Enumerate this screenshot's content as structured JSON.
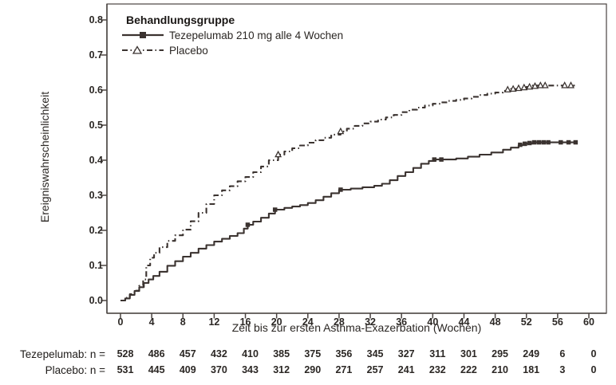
{
  "chart": {
    "y_axis_title": "Ereigniswahrscheinlichkeit",
    "x_axis_title": "Zeit bis zur ersten Asthma-Exazerbation (Wochen)",
    "legend": {
      "title": "Behandlungsgruppe",
      "items": [
        {
          "label": "Tezepelumab 210 mg alle 4 Wochen",
          "line_style": "solid",
          "marker": "filled-square"
        },
        {
          "label": "Placebo",
          "line_style": "dash-dot",
          "marker": "open-triangle"
        }
      ]
    }
  },
  "colors": {
    "line": "#3b3330",
    "frame": "#4a4441",
    "text": "#2b2724",
    "background": "#ffffff"
  },
  "chart_data": {
    "type": "line",
    "subtype": "kaplan-meier-cumulative-incidence",
    "title": "",
    "xlabel": "Zeit bis zur ersten Asthma-Exazerbation (Wochen)",
    "ylabel": "Ereigniswahrscheinlichkeit",
    "xlim": [
      0,
      60
    ],
    "ylim": [
      0.0,
      0.8
    ],
    "x_ticks": [
      0,
      4,
      8,
      12,
      16,
      20,
      24,
      28,
      32,
      36,
      40,
      44,
      48,
      52,
      56,
      60
    ],
    "y_ticks": [
      "0.0",
      "0.1",
      "0.2",
      "0.3",
      "0.4",
      "0.5",
      "0.6",
      "0.7",
      "0.8"
    ],
    "grid": false,
    "legend_position": "inside-top-left",
    "series": [
      {
        "name": "Tezepelumab 210 mg alle 4 Wochen",
        "line_style": "solid",
        "marker": "square",
        "color": "#3b3330",
        "points": [
          [
            0,
            0.0
          ],
          [
            0.6,
            0.006
          ],
          [
            1.2,
            0.016
          ],
          [
            1.8,
            0.027
          ],
          [
            2.4,
            0.038
          ],
          [
            3,
            0.05
          ],
          [
            3.6,
            0.06
          ],
          [
            4.2,
            0.07
          ],
          [
            5,
            0.082
          ],
          [
            6,
            0.099
          ],
          [
            7,
            0.112
          ],
          [
            8,
            0.125
          ],
          [
            9,
            0.136
          ],
          [
            10,
            0.148
          ],
          [
            11,
            0.158
          ],
          [
            12,
            0.168
          ],
          [
            13,
            0.176
          ],
          [
            14,
            0.184
          ],
          [
            15,
            0.192
          ],
          [
            15.8,
            0.205
          ],
          [
            16.3,
            0.216
          ],
          [
            17,
            0.225
          ],
          [
            18,
            0.236
          ],
          [
            19,
            0.248
          ],
          [
            19.8,
            0.259
          ],
          [
            21,
            0.264
          ],
          [
            22,
            0.268
          ],
          [
            23,
            0.272
          ],
          [
            24,
            0.278
          ],
          [
            25,
            0.286
          ],
          [
            26,
            0.296
          ],
          [
            27,
            0.306
          ],
          [
            28,
            0.316
          ],
          [
            29.5,
            0.319
          ],
          [
            31,
            0.323
          ],
          [
            32.5,
            0.327
          ],
          [
            33.5,
            0.333
          ],
          [
            34.5,
            0.343
          ],
          [
            35.5,
            0.355
          ],
          [
            36.5,
            0.366
          ],
          [
            37.5,
            0.378
          ],
          [
            38.5,
            0.39
          ],
          [
            39.5,
            0.398
          ],
          [
            40.3,
            0.402
          ],
          [
            43,
            0.405
          ],
          [
            44.5,
            0.41
          ],
          [
            46,
            0.416
          ],
          [
            47.5,
            0.422
          ],
          [
            49,
            0.43
          ],
          [
            50,
            0.436
          ],
          [
            51,
            0.443
          ],
          [
            52,
            0.448
          ],
          [
            52.8,
            0.451
          ],
          [
            58.5,
            0.451
          ]
        ],
        "censor_marks": [
          [
            16.3,
            0.216
          ],
          [
            19.8,
            0.259
          ],
          [
            28.2,
            0.316
          ],
          [
            40.2,
            0.402
          ],
          [
            41.1,
            0.402
          ],
          [
            51.2,
            0.444
          ],
          [
            51.8,
            0.447
          ],
          [
            52.4,
            0.449
          ],
          [
            53.0,
            0.451
          ],
          [
            53.6,
            0.451
          ],
          [
            54.2,
            0.451
          ],
          [
            54.8,
            0.451
          ],
          [
            56.4,
            0.451
          ],
          [
            57.4,
            0.451
          ],
          [
            58.3,
            0.451
          ]
        ]
      },
      {
        "name": "Placebo",
        "line_style": "dashdot",
        "marker": "triangle-open",
        "color": "#3b3330",
        "points": [
          [
            0,
            0.0
          ],
          [
            0.6,
            0.008
          ],
          [
            1.2,
            0.018
          ],
          [
            1.8,
            0.028
          ],
          [
            2.4,
            0.042
          ],
          [
            2.9,
            0.06
          ],
          [
            3.3,
            0.1
          ],
          [
            3.8,
            0.122
          ],
          [
            4.3,
            0.136
          ],
          [
            5,
            0.152
          ],
          [
            6,
            0.17
          ],
          [
            7,
            0.186
          ],
          [
            8,
            0.202
          ],
          [
            9,
            0.226
          ],
          [
            10,
            0.25
          ],
          [
            11,
            0.275
          ],
          [
            12,
            0.3
          ],
          [
            13,
            0.314
          ],
          [
            14,
            0.326
          ],
          [
            15,
            0.34
          ],
          [
            16,
            0.352
          ],
          [
            17,
            0.366
          ],
          [
            18,
            0.382
          ],
          [
            19,
            0.4
          ],
          [
            20.2,
            0.416
          ],
          [
            21,
            0.425
          ],
          [
            22,
            0.434
          ],
          [
            23,
            0.442
          ],
          [
            24,
            0.45
          ],
          [
            25,
            0.457
          ],
          [
            26,
            0.464
          ],
          [
            27,
            0.473
          ],
          [
            28.2,
            0.482
          ],
          [
            29,
            0.49
          ],
          [
            30,
            0.498
          ],
          [
            31,
            0.505
          ],
          [
            32,
            0.51
          ],
          [
            33,
            0.516
          ],
          [
            34,
            0.522
          ],
          [
            35,
            0.529
          ],
          [
            36,
            0.537
          ],
          [
            37,
            0.544
          ],
          [
            38,
            0.55
          ],
          [
            39,
            0.556
          ],
          [
            40,
            0.561
          ],
          [
            41,
            0.565
          ],
          [
            42,
            0.569
          ],
          [
            43,
            0.572
          ],
          [
            44,
            0.576
          ],
          [
            45,
            0.581
          ],
          [
            46,
            0.586
          ],
          [
            47,
            0.59
          ],
          [
            48,
            0.593
          ],
          [
            49,
            0.598
          ],
          [
            50,
            0.603
          ],
          [
            51,
            0.606
          ],
          [
            52,
            0.609
          ],
          [
            52.7,
            0.613
          ],
          [
            58.2,
            0.613
          ]
        ],
        "censor_marks": [
          [
            20.2,
            0.416
          ],
          [
            28.2,
            0.482
          ],
          [
            49.6,
            0.601
          ],
          [
            50.3,
            0.603
          ],
          [
            51.0,
            0.605
          ],
          [
            51.7,
            0.607
          ],
          [
            52.4,
            0.609
          ],
          [
            53.1,
            0.611
          ],
          [
            53.8,
            0.613
          ],
          [
            54.4,
            0.613
          ],
          [
            56.9,
            0.613
          ],
          [
            57.7,
            0.613
          ]
        ]
      }
    ],
    "risk_table": {
      "weeks": [
        0,
        4,
        8,
        12,
        16,
        20,
        24,
        28,
        32,
        36,
        40,
        44,
        48,
        52,
        56,
        60
      ],
      "rows": [
        {
          "label": "Tezepelumab: n =",
          "values": [
            528,
            486,
            457,
            432,
            410,
            385,
            375,
            356,
            345,
            327,
            311,
            301,
            295,
            249,
            6,
            0
          ]
        },
        {
          "label": "Placebo: n =",
          "values": [
            531,
            445,
            409,
            370,
            343,
            312,
            290,
            271,
            257,
            241,
            232,
            222,
            210,
            181,
            3,
            0
          ]
        }
      ]
    }
  }
}
